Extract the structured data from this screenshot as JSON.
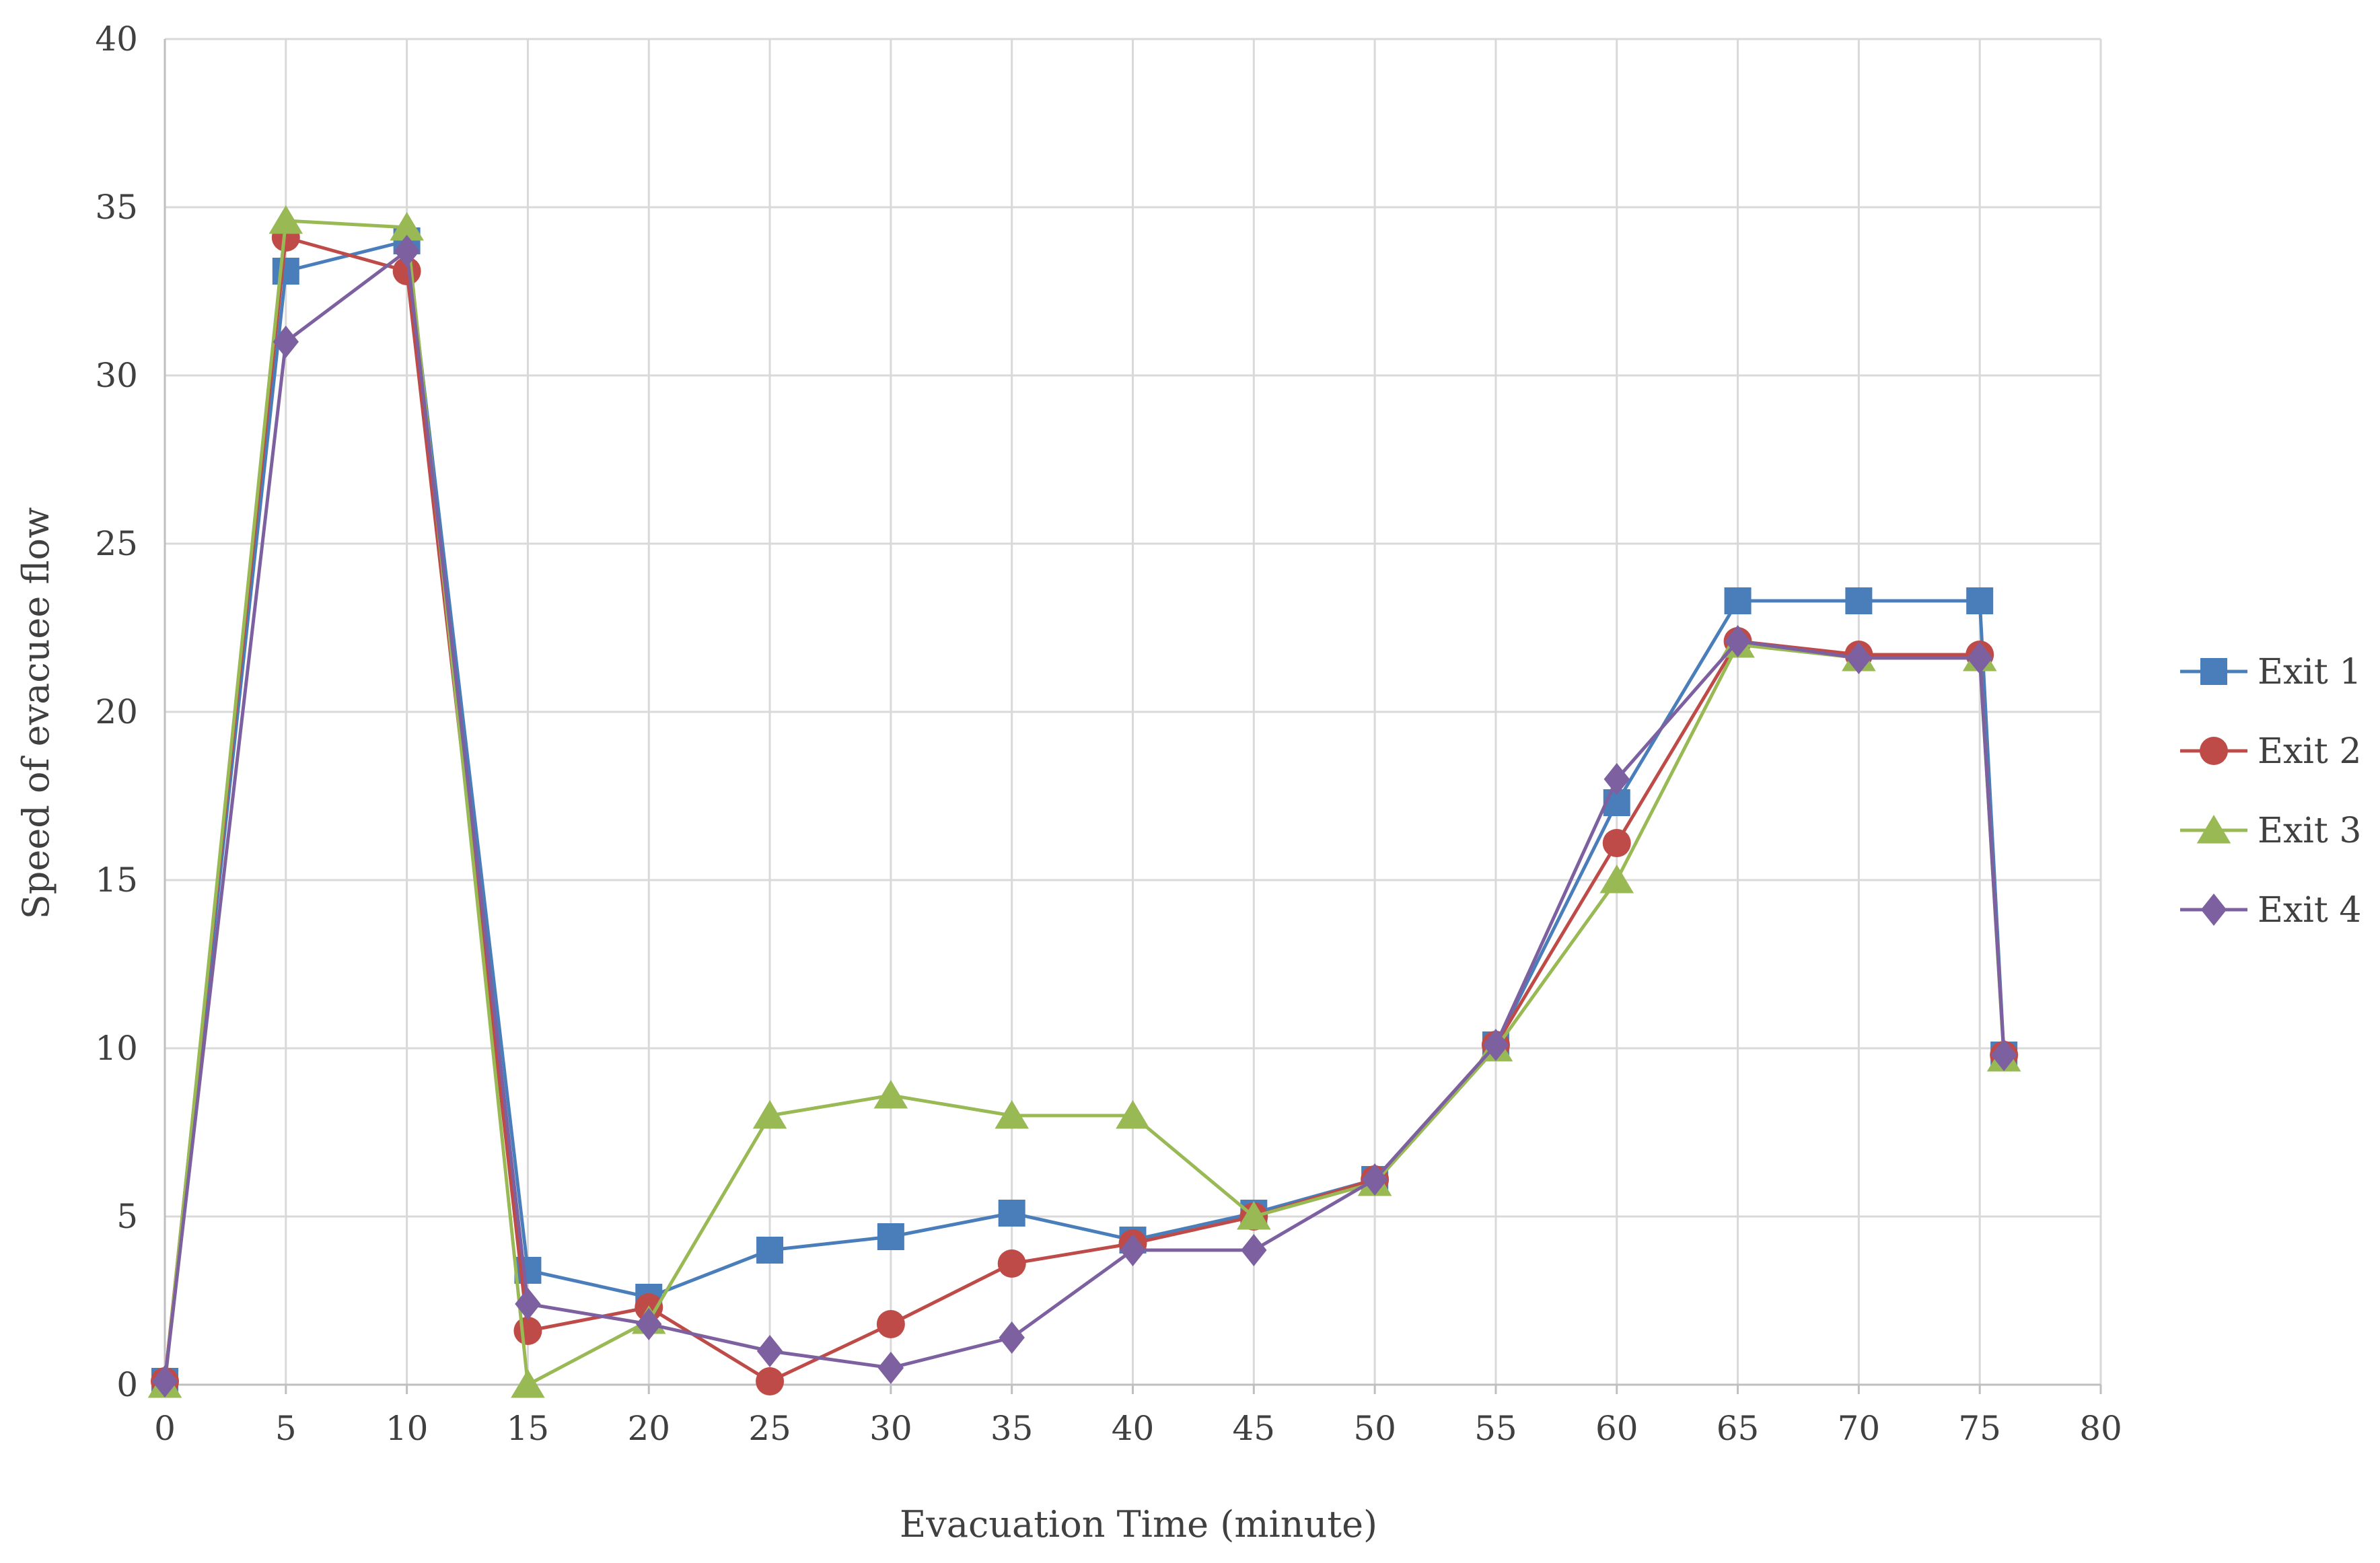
{
  "chart_data": {
    "type": "line",
    "xlabel": "Evacuation Time (minute)",
    "ylabel": "Speed of evacuee flow",
    "xlim": [
      0,
      80
    ],
    "ylim": [
      0,
      40
    ],
    "xticks": [
      0,
      5,
      10,
      15,
      20,
      25,
      30,
      35,
      40,
      45,
      50,
      55,
      60,
      65,
      70,
      75,
      80
    ],
    "yticks": [
      0,
      5,
      10,
      15,
      20,
      25,
      30,
      35,
      40
    ],
    "grid": true,
    "legend_position": "right",
    "x": [
      0,
      5,
      10,
      15,
      20,
      25,
      30,
      35,
      40,
      45,
      50,
      55,
      60,
      65,
      70,
      75,
      76
    ],
    "series": [
      {
        "name": "Exit 1",
        "color": "#4a7ebb",
        "marker": "square",
        "values": [
          0.1,
          33.1,
          34.0,
          3.4,
          2.6,
          4.0,
          4.4,
          5.1,
          4.3,
          5.1,
          6.1,
          10.1,
          17.3,
          23.3,
          23.3,
          23.3,
          9.8
        ]
      },
      {
        "name": "Exit 2",
        "color": "#be4b48",
        "marker": "circle",
        "values": [
          0.1,
          34.1,
          33.1,
          1.6,
          2.3,
          0.1,
          1.8,
          3.6,
          4.2,
          5.0,
          6.1,
          10.1,
          16.1,
          22.1,
          21.7,
          21.7,
          9.8
        ]
      },
      {
        "name": "Exit 3",
        "color": "#98b954",
        "marker": "triangle",
        "values": [
          0.0,
          34.6,
          34.4,
          0.0,
          1.9,
          8.0,
          8.6,
          8.0,
          8.0,
          5.0,
          6.0,
          10.0,
          15.0,
          22.0,
          21.6,
          21.6,
          9.7
        ]
      },
      {
        "name": "Exit 4",
        "color": "#7d60a0",
        "marker": "diamond",
        "values": [
          0.1,
          31.0,
          33.7,
          2.4,
          1.8,
          1.0,
          0.5,
          1.4,
          4.0,
          4.0,
          6.1,
          10.1,
          18.0,
          22.1,
          21.6,
          21.6,
          9.8
        ]
      }
    ]
  }
}
